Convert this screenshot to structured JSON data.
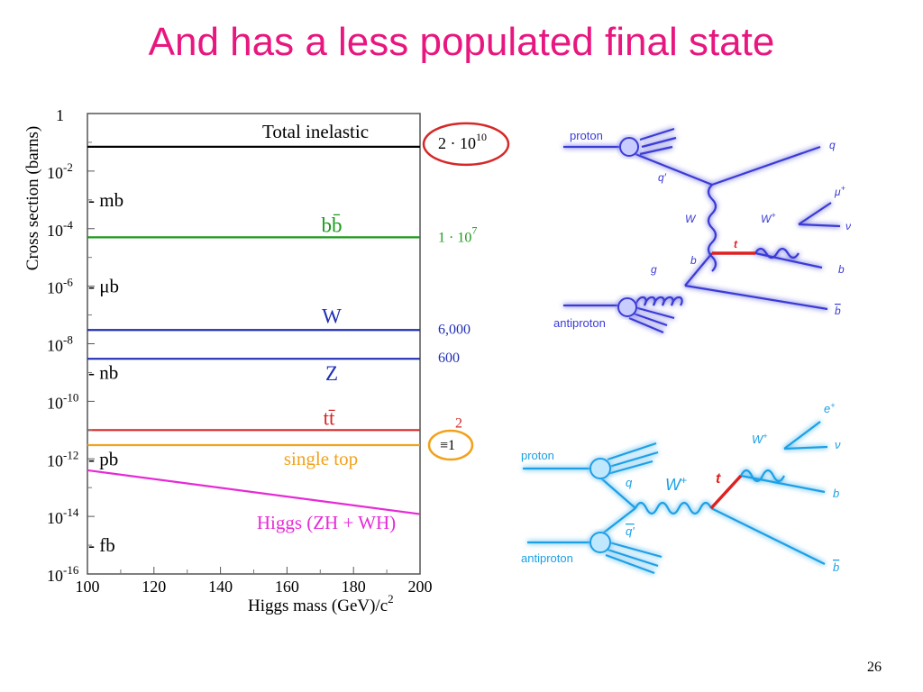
{
  "slide": {
    "title": "And has a less populated final state",
    "page_number": "26"
  },
  "chart_data": {
    "type": "line",
    "xlabel": "Higgs mass (GeV)/c",
    "xlabel_sup": "2",
    "ylabel": "Cross section (barns)",
    "log_y": true,
    "xlim": [
      100,
      200
    ],
    "ylim": [
      1e-16,
      1
    ],
    "x_ticks": [
      "100",
      "120",
      "140",
      "160",
      "180",
      "200"
    ],
    "y_ticks": [
      {
        "base": "1",
        "exp": ""
      },
      {
        "base": "10",
        "exp": "-2"
      },
      {
        "base": "10",
        "exp": "-4"
      },
      {
        "base": "10",
        "exp": "-6"
      },
      {
        "base": "10",
        "exp": "-8"
      },
      {
        "base": "10",
        "exp": "-10"
      },
      {
        "base": "10",
        "exp": "-12"
      },
      {
        "base": "10",
        "exp": "-14"
      },
      {
        "base": "10",
        "exp": "-16"
      }
    ],
    "unit_labels": [
      {
        "label": "- mb",
        "y": 0.001
      },
      {
        "label": "- μb",
        "y": 1e-06
      },
      {
        "label": "- nb",
        "y": 1e-09
      },
      {
        "label": "- pb",
        "y": 1e-12
      },
      {
        "label": "- fb",
        "y": 1e-15
      }
    ],
    "series": [
      {
        "name": "Total inelastic",
        "color": "#000000",
        "x": [
          100,
          200
        ],
        "y": [
          0.07,
          0.07
        ],
        "rate": "2 · 10",
        "rate_sup": "10",
        "rate_color": "#000000"
      },
      {
        "name": "bb̄",
        "color": "#1a9a1a",
        "x": [
          100,
          200
        ],
        "y": [
          5e-05,
          5e-05
        ],
        "rate": "1 · 10",
        "rate_sup": "7",
        "rate_color": "#1a9a1a"
      },
      {
        "name": "W",
        "color": "#1f2fb4",
        "x": [
          100,
          200
        ],
        "y": [
          3e-08,
          3e-08
        ],
        "rate": "6,000",
        "rate_sup": "",
        "rate_color": "#1f2fb4"
      },
      {
        "name": "Z",
        "color": "#1f2fb4",
        "x": [
          100,
          200
        ],
        "y": [
          3e-09,
          3e-09
        ],
        "rate": "600",
        "rate_sup": "",
        "rate_color": "#1f2fb4"
      },
      {
        "name": "tt̄",
        "color": "#d62828",
        "x": [
          100,
          200
        ],
        "y": [
          1e-11,
          1e-11
        ],
        "rate": "2",
        "rate_sup": "",
        "rate_color": "#d62828"
      },
      {
        "name": "single top",
        "color": "#f2a21a",
        "x": [
          100,
          200
        ],
        "y": [
          3e-12,
          3e-12
        ],
        "rate": "≡1",
        "rate_sup": "",
        "rate_color": "#000000"
      },
      {
        "name": "Higgs (ZH + WH)",
        "color": "#e62ad6",
        "x": [
          100,
          200
        ],
        "y": [
          4e-13,
          1.2e-14
        ],
        "rate": "",
        "rate_sup": "",
        "rate_color": "#000000"
      }
    ],
    "rate_highlights": [
      {
        "series": "Total inelastic",
        "color": "#d62828"
      },
      {
        "series": "single top",
        "color": "#f2a21a"
      }
    ]
  },
  "diagrams": {
    "top": {
      "color": "#3a3ad6",
      "labels": {
        "proton": "proton",
        "antiproton": "antiproton",
        "q": "q",
        "q_prime": "q′",
        "W": "W",
        "t": "t",
        "W_plus": "W",
        "W_plus_sup": "+",
        "mu": "μ",
        "mu_sup": "+",
        "nu": "ν",
        "b": "b",
        "b_bar": "b",
        "g": "g",
        "b_in": "b"
      }
    },
    "bottom": {
      "color": "#1aa0e6",
      "labels": {
        "proton": "proton",
        "antiproton": "antiproton",
        "q": "q",
        "q_bar_prime": "q′",
        "W_plus": "W",
        "W_plus_sup": "+",
        "t": "t",
        "W_plus2": "W",
        "W_plus2_sup": "+",
        "e": "e",
        "e_sup": "+",
        "nu": "ν",
        "b": "b",
        "b_bar": "b"
      }
    }
  }
}
